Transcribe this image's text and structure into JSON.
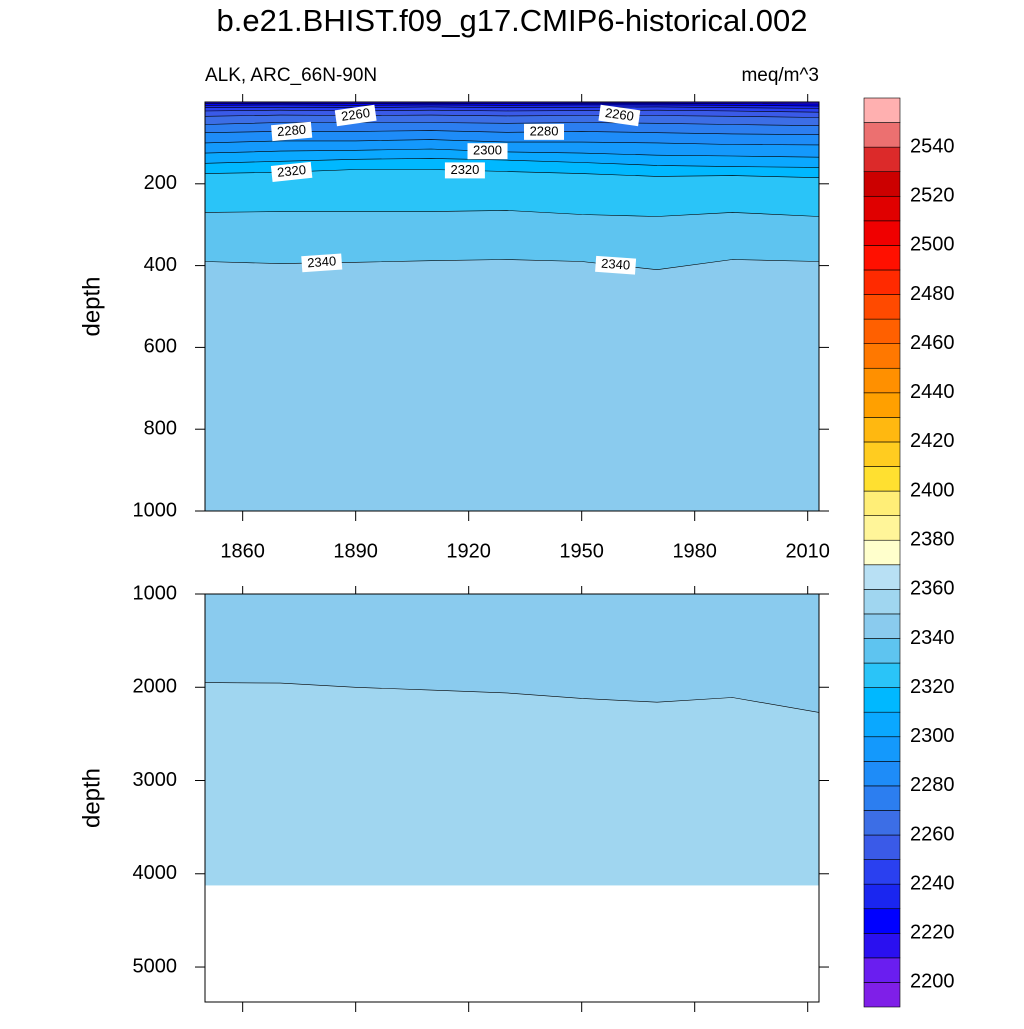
{
  "chart_data": {
    "type": "contour",
    "title": "b.e21.BHIST.f09_g17.CMIP6-historical.002",
    "subtitle_left": "ALK, ARC_66N-90N",
    "subtitle_right": "meq/m^3",
    "x": [
      1850,
      1870,
      1890,
      1910,
      1930,
      1950,
      1970,
      1990,
      2013
    ],
    "xlim": [
      1850,
      2013
    ],
    "xticks": [
      1860,
      1890,
      1920,
      1950,
      1980,
      2010
    ],
    "colorbar": {
      "levels": [
        2190,
        2200,
        2210,
        2220,
        2230,
        2240,
        2250,
        2260,
        2270,
        2280,
        2290,
        2300,
        2310,
        2320,
        2330,
        2340,
        2350,
        2360,
        2370,
        2380,
        2390,
        2400,
        2410,
        2420,
        2430,
        2440,
        2450,
        2460,
        2470,
        2480,
        2490,
        2500,
        2510,
        2520,
        2530,
        2540,
        2550,
        2560
      ],
      "colors": [
        "#7f1fe8",
        "#6a1ef0",
        "#2a10f0",
        "#0000ff",
        "#1a26f0",
        "#2a40f0",
        "#3a5ae8",
        "#3c6ee6",
        "#2c7ef0",
        "#1e8cf8",
        "#1499fc",
        "#0aa8ff",
        "#00b8ff",
        "#2ac4f8",
        "#5ec4f0",
        "#8acbee",
        "#a0d6f0",
        "#b8e0f4",
        "#ffffcc",
        "#fff599",
        "#ffee77",
        "#ffe030",
        "#ffcc20",
        "#ffb810",
        "#ffa000",
        "#ff9000",
        "#ff7800",
        "#ff6000",
        "#ff4a00",
        "#ff2a00",
        "#ff1000",
        "#f00000",
        "#e00000",
        "#cc0000",
        "#dc2a2a",
        "#ec7070",
        "#ffb0b0"
      ],
      "ticks": [
        2200,
        2220,
        2240,
        2260,
        2280,
        2300,
        2320,
        2340,
        2360,
        2380,
        2400,
        2420,
        2440,
        2460,
        2480,
        2500,
        2520,
        2540
      ]
    },
    "panels": [
      {
        "ylabel": "depth",
        "ylim": [
          0,
          1000
        ],
        "yticks": [
          200,
          400,
          600,
          800,
          1000
        ],
        "background_level": 2210,
        "contours": [
          {
            "level": 2220,
            "depths": [
              4,
              3,
              4,
              3,
              4,
              3,
              3,
              4,
              5
            ]
          },
          {
            "level": 2230,
            "depths": [
              8,
              7,
              8,
              7,
              8,
              7,
              7,
              8,
              10
            ]
          },
          {
            "level": 2240,
            "depths": [
              14,
              13,
              14,
              12,
              14,
              13,
              12,
              14,
              16
            ]
          },
          {
            "level": 2250,
            "depths": [
              22,
              20,
              22,
              20,
              22,
              21,
              20,
              22,
              25
            ]
          },
          {
            "level": 2260,
            "depths": [
              35,
              32,
              33,
              32,
              34,
              33,
              33,
              35,
              38
            ]
          },
          {
            "level": 2270,
            "depths": [
              55,
              50,
              50,
              50,
              52,
              50,
              52,
              55,
              58
            ]
          },
          {
            "level": 2280,
            "depths": [
              75,
              72,
              72,
              70,
              74,
              72,
              75,
              78,
              80
            ]
          },
          {
            "level": 2290,
            "depths": [
              100,
              95,
              95,
              92,
              98,
              98,
              100,
              104,
              105
            ]
          },
          {
            "level": 2300,
            "depths": [
              125,
              120,
              118,
              115,
              122,
              125,
              130,
              132,
              135
            ]
          },
          {
            "level": 2310,
            "depths": [
              150,
              145,
              140,
              138,
              142,
              148,
              155,
              158,
              160
            ]
          },
          {
            "level": 2320,
            "depths": [
              175,
              172,
              165,
              165,
              170,
              175,
              182,
              180,
              185
            ]
          },
          {
            "level": 2330,
            "depths": [
              270,
              268,
              268,
              268,
              265,
              275,
              280,
              270,
              280
            ]
          },
          {
            "level": 2340,
            "depths": [
              390,
              395,
              392,
              388,
              385,
              390,
              410,
              385,
              390
            ]
          }
        ]
      },
      {
        "ylabel": "depth",
        "ylim": [
          1000,
          5375
        ],
        "yticks": [
          1000,
          2000,
          3000,
          4000,
          5000
        ],
        "background_level": 2340,
        "floor_depth": 4125,
        "contours": [
          {
            "level": 2350,
            "depths": [
              1950,
              1955,
              2000,
              2030,
              2060,
              2120,
              2160,
              2110,
              2270
            ]
          }
        ]
      }
    ]
  }
}
